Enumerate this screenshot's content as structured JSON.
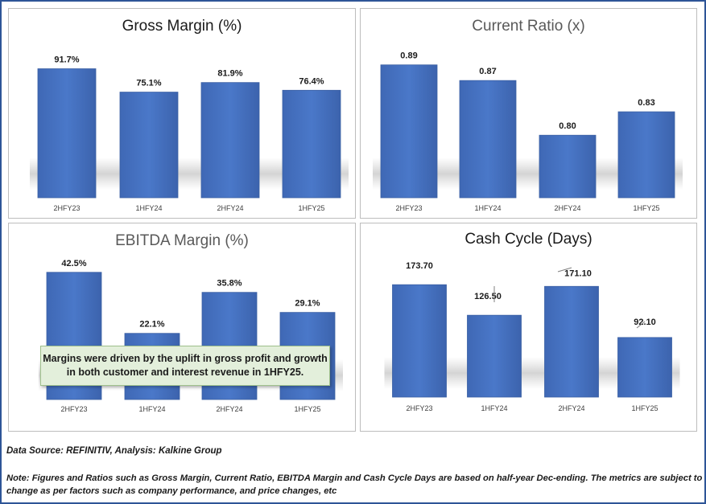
{
  "colors": {
    "bar": "#4472c4",
    "frame": "#2e5597",
    "callout_bg": "#e3efdb"
  },
  "chart_data": [
    {
      "type": "bar",
      "title": "Gross Margin (%)",
      "categories": [
        "2HFY23",
        "1HFY24",
        "2HFY24",
        "1HFY25"
      ],
      "values": [
        91.7,
        75.1,
        81.9,
        76.4
      ],
      "labels": [
        "91.7%",
        "75.1%",
        "81.9%",
        "76.4%"
      ],
      "ylim": [
        0,
        100
      ],
      "grid": false
    },
    {
      "type": "bar",
      "title": "Current Ratio (x)",
      "categories": [
        "2HFY23",
        "1HFY24",
        "2HFY24",
        "1HFY25"
      ],
      "values": [
        0.89,
        0.87,
        0.8,
        0.83
      ],
      "labels": [
        "0.89",
        "0.87",
        "0.80",
        "0.83"
      ],
      "ylim": [
        0.72,
        0.9
      ],
      "grid": false
    },
    {
      "type": "bar",
      "title": "EBITDA Margin (%)",
      "categories": [
        "2HFY23",
        "1HFY24",
        "2HFY24",
        "1HFY25"
      ],
      "values": [
        42.5,
        22.1,
        35.8,
        29.1
      ],
      "labels": [
        "42.5%",
        "22.1%",
        "35.8%",
        "29.1%"
      ],
      "ylim": [
        0,
        47
      ],
      "grid": false
    },
    {
      "type": "bar",
      "title": "Cash Cycle (Days)",
      "categories": [
        "2HFY23",
        "1HFY24",
        "2HFY24",
        "1HFY25"
      ],
      "values": [
        173.7,
        126.5,
        171.1,
        92.1
      ],
      "labels": [
        "173.70",
        "126.50",
        "171.10",
        "92.10"
      ],
      "ylim": [
        0,
        200
      ],
      "grid": false
    }
  ],
  "callout": {
    "line1": "Margins were driven by the uplift in gross profit and growth",
    "line2": "in both customer and interest revenue in 1HFY25."
  },
  "source": "Data Source: REFINITIV, Analysis: Kalkine Group",
  "note": "Note: Figures and Ratios such as Gross Margin, Current Ratio, EBITDA Margin and Cash Cycle Days are based on half-year Dec-ending. The metrics are subject to change as per factors such as company performance, and price changes, etc"
}
